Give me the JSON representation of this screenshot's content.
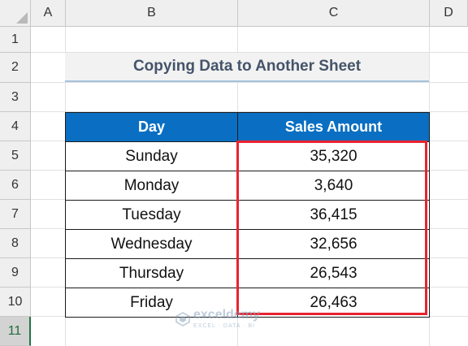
{
  "columns": [
    "A",
    "B",
    "C",
    "D"
  ],
  "rows": [
    "1",
    "2",
    "3",
    "4",
    "5",
    "6",
    "7",
    "8",
    "9",
    "10",
    "11"
  ],
  "selected_row": "11",
  "title": "Copying Data to Another Sheet",
  "table": {
    "headers": [
      "Day",
      "Sales Amount"
    ],
    "rows": [
      {
        "day": "Sunday",
        "amount": "35,320"
      },
      {
        "day": "Monday",
        "amount": "3,640"
      },
      {
        "day": "Tuesday",
        "amount": "36,415"
      },
      {
        "day": "Wednesday",
        "amount": "32,656"
      },
      {
        "day": "Thursday",
        "amount": "26,543"
      },
      {
        "day": "Friday",
        "amount": "26,463"
      }
    ]
  },
  "watermark": {
    "brand": "exceldemy",
    "tagline": "EXCEL · DATA · BI"
  },
  "colors": {
    "header_fill": "#0a6fc2",
    "highlight_border": "#e8232f",
    "title_text": "#44546a"
  }
}
